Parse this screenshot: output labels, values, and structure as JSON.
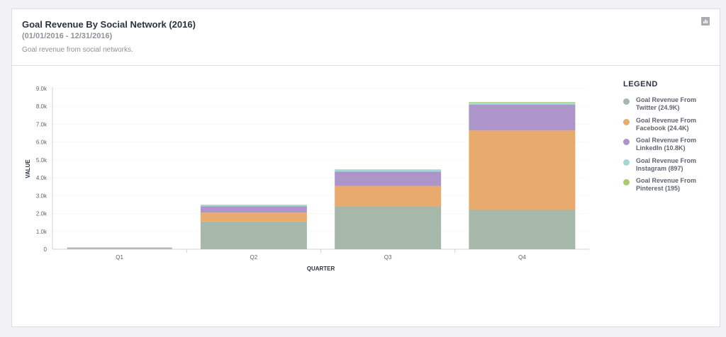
{
  "header": {
    "title": "Goal Revenue By Social Network (2016)",
    "date_range": "(01/01/2016 - 12/31/2016)",
    "subtitle": "Goal revenue from social networks.",
    "chart_icon": "bar-chart-icon"
  },
  "legend": {
    "title": "LEGEND",
    "items": [
      {
        "label": "Goal Revenue From Twitter (24.9K)",
        "color": "#a5b8a9"
      },
      {
        "label": "Goal Revenue From Facebook (24.4K)",
        "color": "#e9ab6d"
      },
      {
        "label": "Goal Revenue From LinkedIn (10.8K)",
        "color": "#ad95c9"
      },
      {
        "label": "Goal Revenue From Instagram (897)",
        "color": "#9fd9d3"
      },
      {
        "label": "Goal Revenue From Pinterest (195)",
        "color": "#a7cc70"
      }
    ]
  },
  "chart_data": {
    "type": "bar",
    "stacked": true,
    "categories": [
      "Q1",
      "Q2",
      "Q3",
      "Q4"
    ],
    "series": [
      {
        "name": "Goal Revenue From Twitter (24.9K)",
        "color": "#a5b8a9",
        "values": [
          0,
          1550,
          2400,
          2200
        ]
      },
      {
        "name": "Goal Revenue From Facebook (24.4K)",
        "color": "#e9ab6d",
        "values": [
          0,
          500,
          1150,
          4450
        ]
      },
      {
        "name": "Goal Revenue From LinkedIn (10.8K)",
        "color": "#ad95c9",
        "values": [
          0,
          350,
          800,
          1450
        ]
      },
      {
        "name": "Goal Revenue From Instagram (897)",
        "color": "#9fd9d3",
        "values": [
          0,
          80,
          100,
          100
        ]
      },
      {
        "name": "Goal Revenue From Pinterest (195)",
        "color": "#a7cc70",
        "values": [
          0,
          10,
          20,
          40
        ]
      }
    ],
    "q1_marker": {
      "value": 100,
      "color": "#b8b8b8"
    },
    "xlabel": "QUARTER",
    "ylabel": "VALUE",
    "ylim": [
      0,
      9000
    ],
    "yticks": [
      {
        "value": 0,
        "label": "0"
      },
      {
        "value": 1000,
        "label": "1.0k"
      },
      {
        "value": 2000,
        "label": "2.0k"
      },
      {
        "value": 3000,
        "label": "3.0k"
      },
      {
        "value": 4000,
        "label": "4.0k"
      },
      {
        "value": 5000,
        "label": "5.0k"
      },
      {
        "value": 6000,
        "label": "6.0k"
      },
      {
        "value": 7000,
        "label": "7.0k"
      },
      {
        "value": 8000,
        "label": "8.0k"
      },
      {
        "value": 9000,
        "label": "9.0k"
      }
    ],
    "grid": true,
    "legend_position": "right"
  }
}
